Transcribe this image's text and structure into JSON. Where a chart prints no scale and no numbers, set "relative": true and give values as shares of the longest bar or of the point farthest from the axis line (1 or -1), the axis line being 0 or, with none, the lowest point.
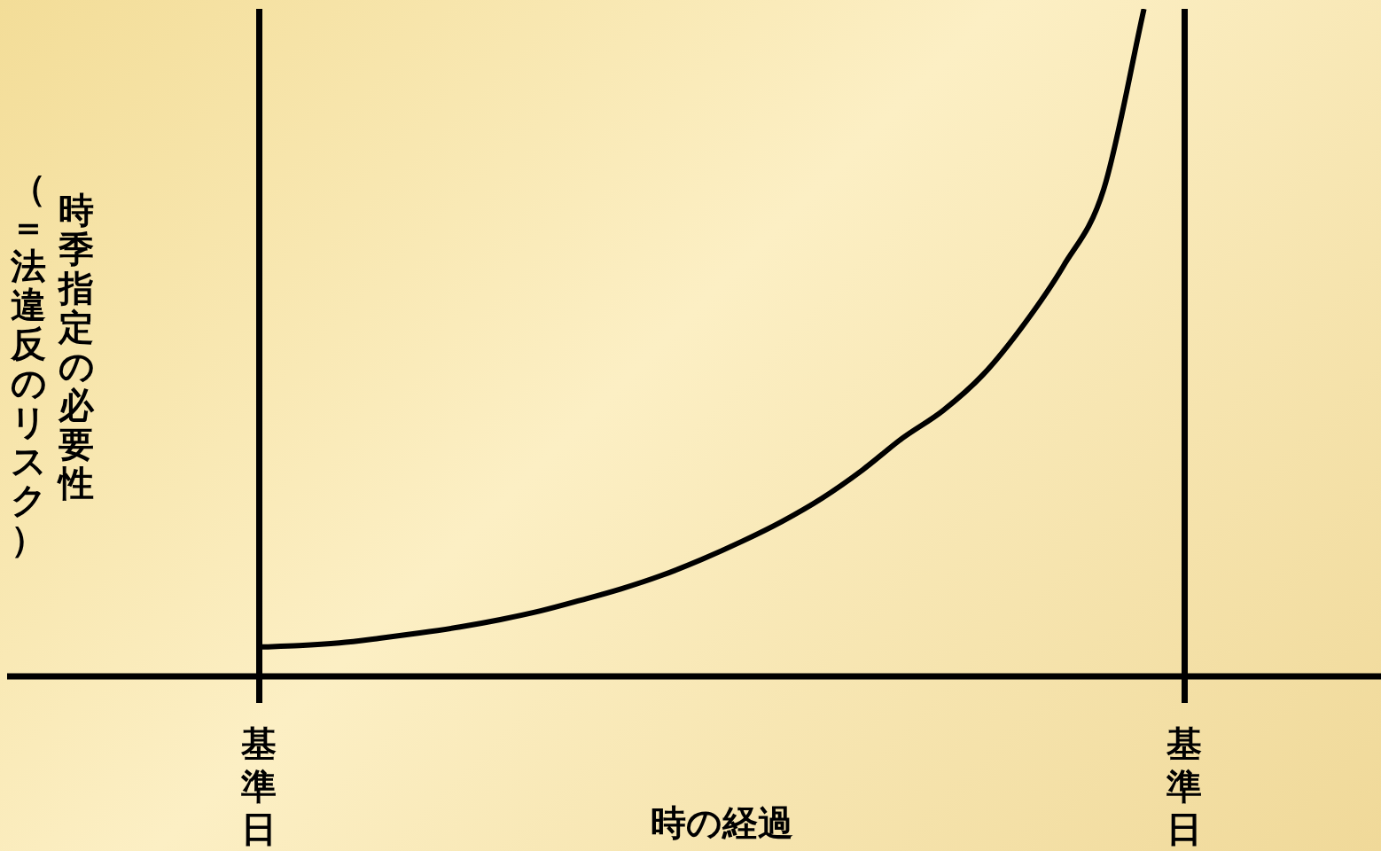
{
  "chart_data": {
    "type": "line",
    "relative": true,
    "xlabel": "時の経過",
    "ylabel": "時季指定の必要性（＝法違反のリスク）",
    "categories": [
      "基準日",
      null,
      null,
      null,
      null,
      null,
      null,
      null,
      null,
      null,
      null,
      null,
      null,
      null,
      null,
      null,
      null,
      null,
      null,
      null,
      null,
      null,
      null,
      "基準日"
    ],
    "series": [
      {
        "color": "#000000",
        "values": [
          0.044,
          0.046,
          0.05,
          0.057,
          0.065,
          0.074,
          0.085,
          0.098,
          0.114,
          0.131,
          0.151,
          0.175,
          0.202,
          0.232,
          0.267,
          0.309,
          0.357,
          0.398,
          0.452,
          0.526,
          0.615,
          0.73,
          1,
          null
        ]
      }
    ],
    "legend": false,
    "grid": "x",
    "marker": "none",
    "line_style": "solid"
  }
}
